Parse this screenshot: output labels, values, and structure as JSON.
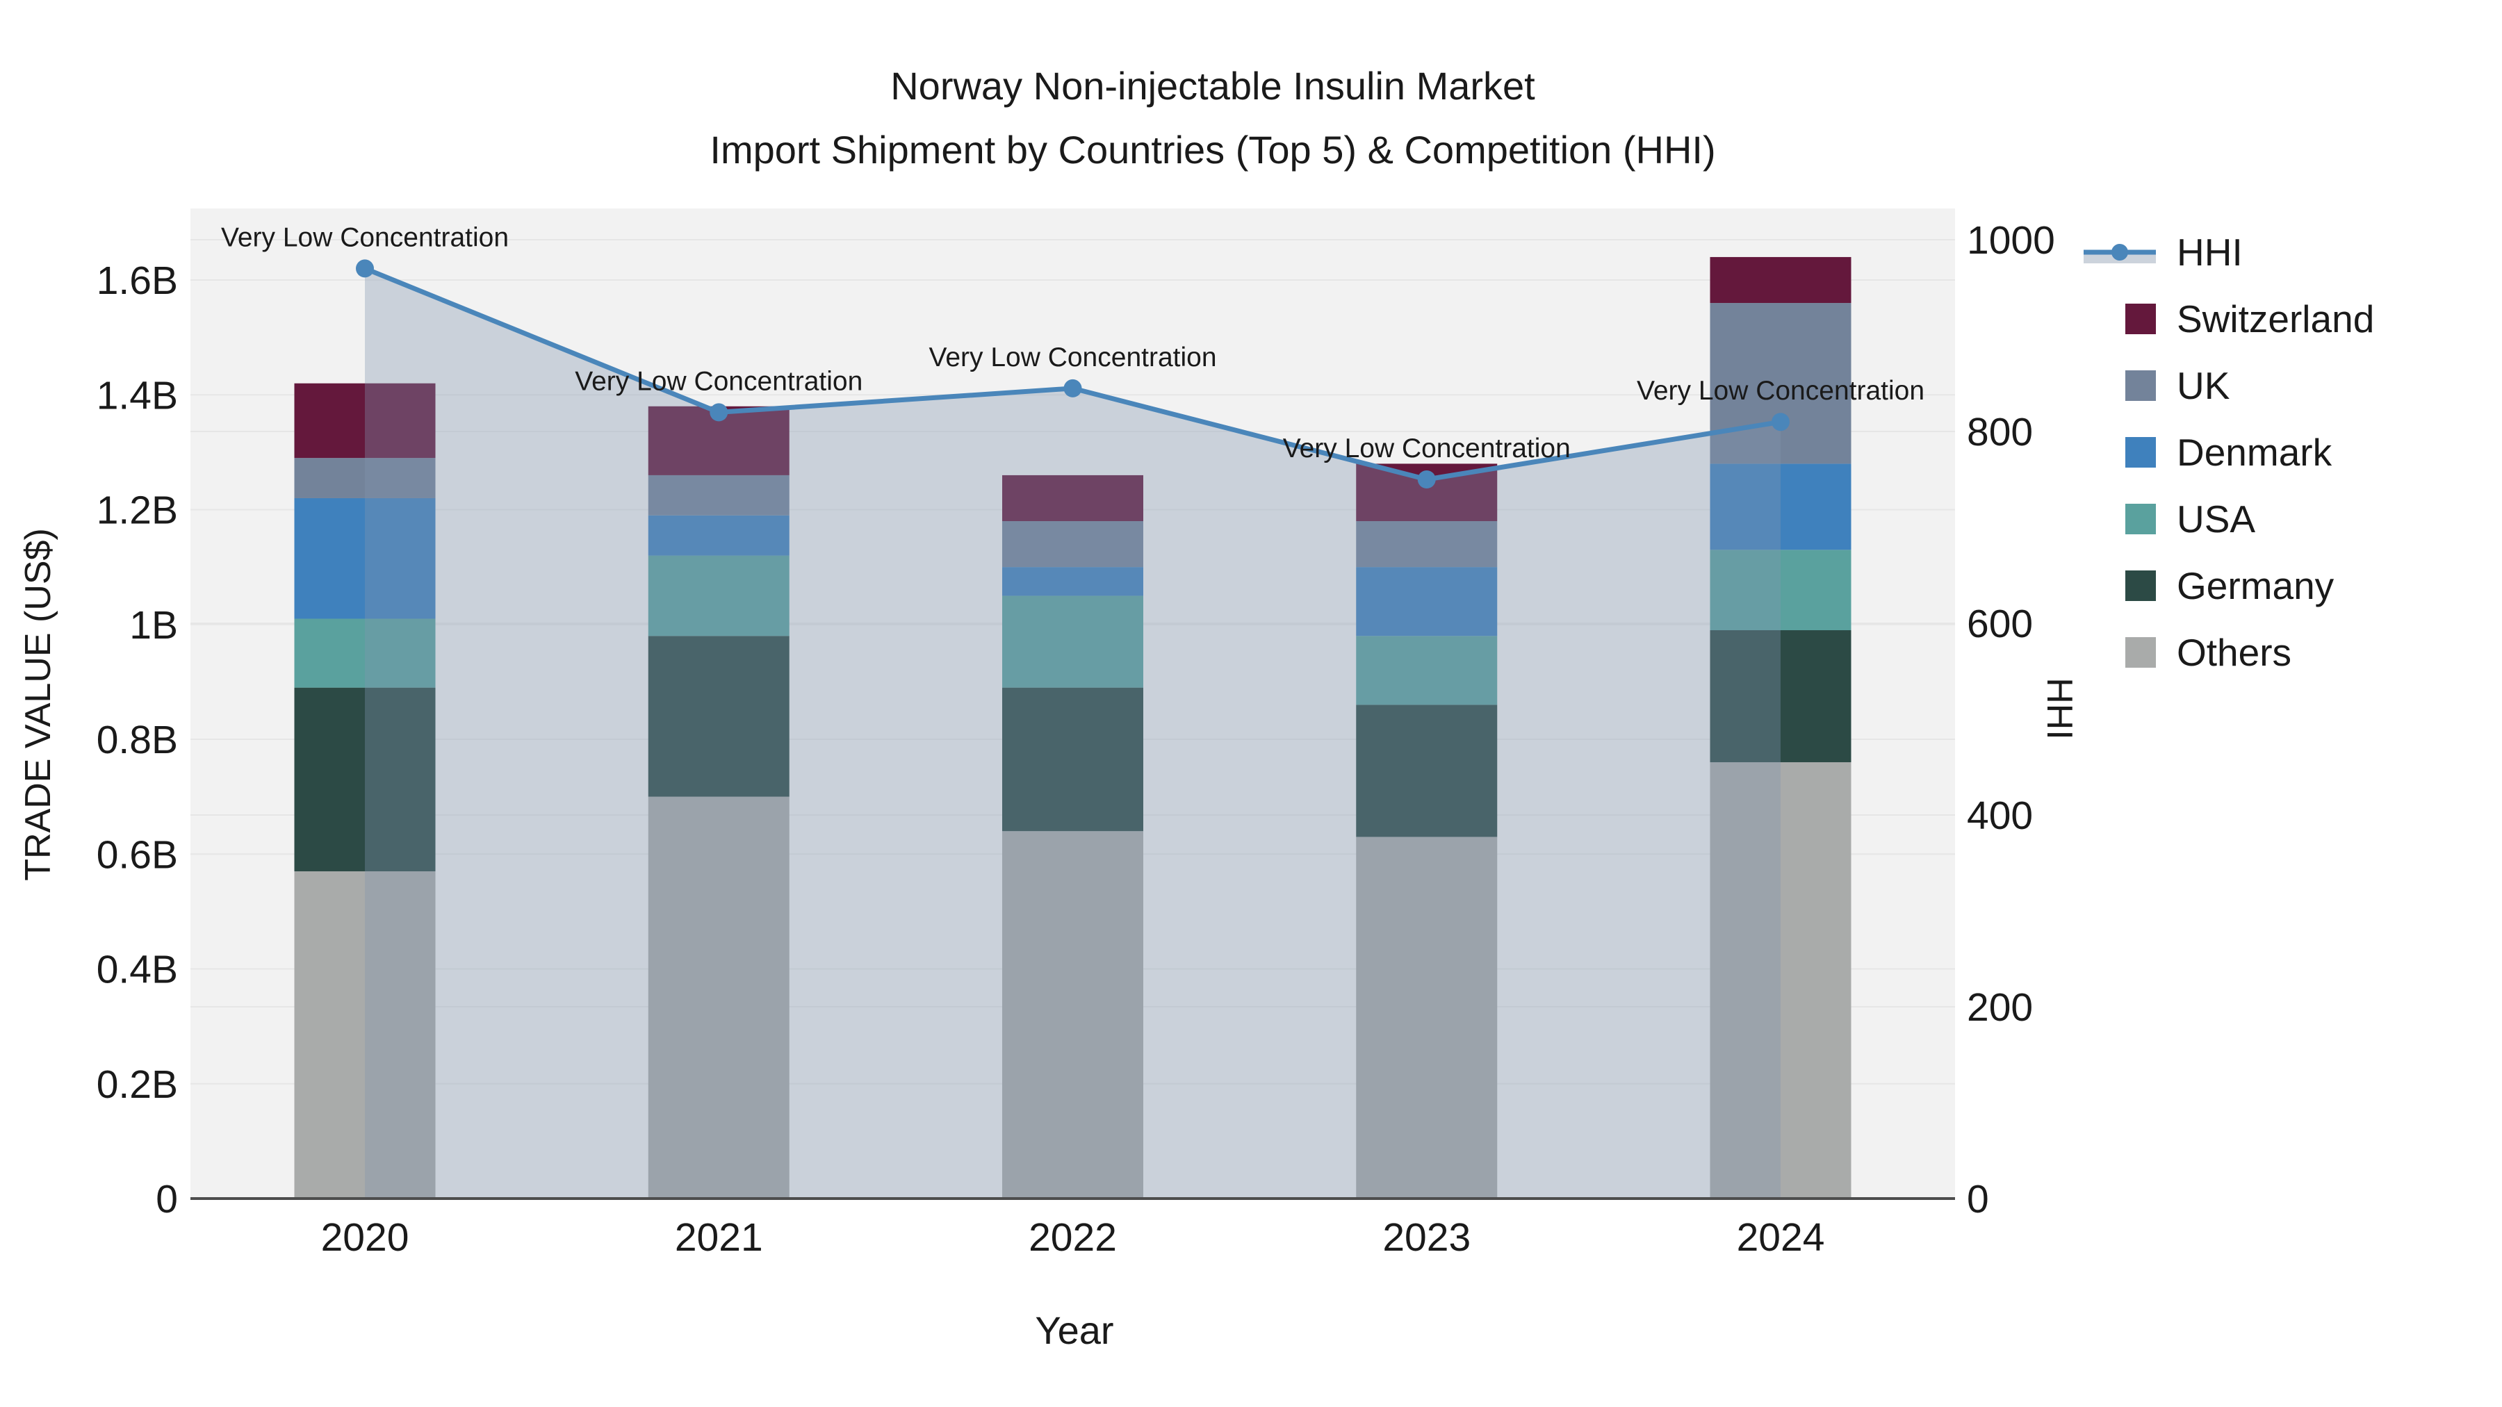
{
  "title": {
    "line1": "Norway Non-injectable Insulin Market",
    "line2": "Import Shipment by Countries (Top 5) & Competition (HHI)"
  },
  "axes": {
    "x_title": "Year",
    "y_left_title": "TRADE VALUE (US$)",
    "y_right_title": "HHI",
    "y_left_tick_labels": [
      "0",
      "0.2B",
      "0.4B",
      "0.6B",
      "0.8B",
      "1B",
      "1.2B",
      "1.4B",
      "1.6B"
    ],
    "y_left_tick_values": [
      0,
      0.2,
      0.4,
      0.6,
      0.8,
      1.0,
      1.2,
      1.4,
      1.6
    ],
    "y_right_tick_labels": [
      "0",
      "200",
      "400",
      "600",
      "800",
      "1000"
    ],
    "y_right_tick_values": [
      0,
      200,
      400,
      600,
      800,
      1000
    ]
  },
  "legend": {
    "items": [
      {
        "label": "HHI",
        "type": "line",
        "color": "#4a86ba",
        "band_color": "#ccd3dc"
      },
      {
        "label": "Switzerland",
        "type": "swatch",
        "color": "#64183c"
      },
      {
        "label": "UK",
        "type": "swatch",
        "color": "#73839a"
      },
      {
        "label": "Denmark",
        "type": "swatch",
        "color": "#3f81bd"
      },
      {
        "label": "USA",
        "type": "swatch",
        "color": "#5aa19e"
      },
      {
        "label": "Germany",
        "type": "swatch",
        "color": "#2c4a45"
      },
      {
        "label": "Others",
        "type": "swatch",
        "color": "#a9abaa"
      }
    ]
  },
  "colors": {
    "plot_background": "#f2f2f2",
    "gridline": "#e6e6e6",
    "axis_line": "#4d4d4d",
    "hhi_line": "#4a86ba",
    "hhi_area_fill": "rgba(130,150,175,0.35)"
  },
  "chart_data": {
    "type": "bar",
    "stacked": true,
    "categories": [
      "2020",
      "2021",
      "2022",
      "2023",
      "2024"
    ],
    "value_unit": "billion US$",
    "series": [
      {
        "name": "Others",
        "color": "#a9abaa",
        "values": [
          0.57,
          0.7,
          0.64,
          0.63,
          0.76
        ]
      },
      {
        "name": "Germany",
        "color": "#2c4a45",
        "values": [
          0.32,
          0.28,
          0.25,
          0.23,
          0.23
        ]
      },
      {
        "name": "USA",
        "color": "#5aa19e",
        "values": [
          0.12,
          0.14,
          0.16,
          0.12,
          0.14
        ]
      },
      {
        "name": "Denmark",
        "color": "#3f81bd",
        "values": [
          0.21,
          0.07,
          0.05,
          0.12,
          0.15
        ]
      },
      {
        "name": "UK",
        "color": "#73839a",
        "values": [
          0.07,
          0.07,
          0.08,
          0.08,
          0.28
        ]
      },
      {
        "name": "Switzerland",
        "color": "#64183c",
        "values": [
          0.13,
          0.12,
          0.08,
          0.1,
          0.08
        ]
      }
    ],
    "bar_totals": [
      1.42,
      1.38,
      1.26,
      1.28,
      1.64
    ],
    "line_series": {
      "name": "HHI",
      "axis": "right",
      "color": "#4a86ba",
      "area_fill": "rgba(130,150,175,0.35)",
      "values": [
        970,
        820,
        845,
        750,
        810
      ],
      "point_annotations": [
        "Very Low Concentration",
        "Very Low Concentration",
        "Very Low Concentration",
        "Very Low Concentration",
        "Very Low Concentration"
      ]
    },
    "title": "Norway Non-injectable Insulin Market\nImport Shipment by Countries (Top 5) & Competition (HHI)",
    "xlabel": "Year",
    "ylabel": "TRADE VALUE (US$)",
    "ylabel_right": "HHI",
    "ylim_left": [
      0,
      1.72
    ],
    "ylim_right": [
      0,
      1033
    ],
    "grid": true,
    "legend_position": "right"
  }
}
